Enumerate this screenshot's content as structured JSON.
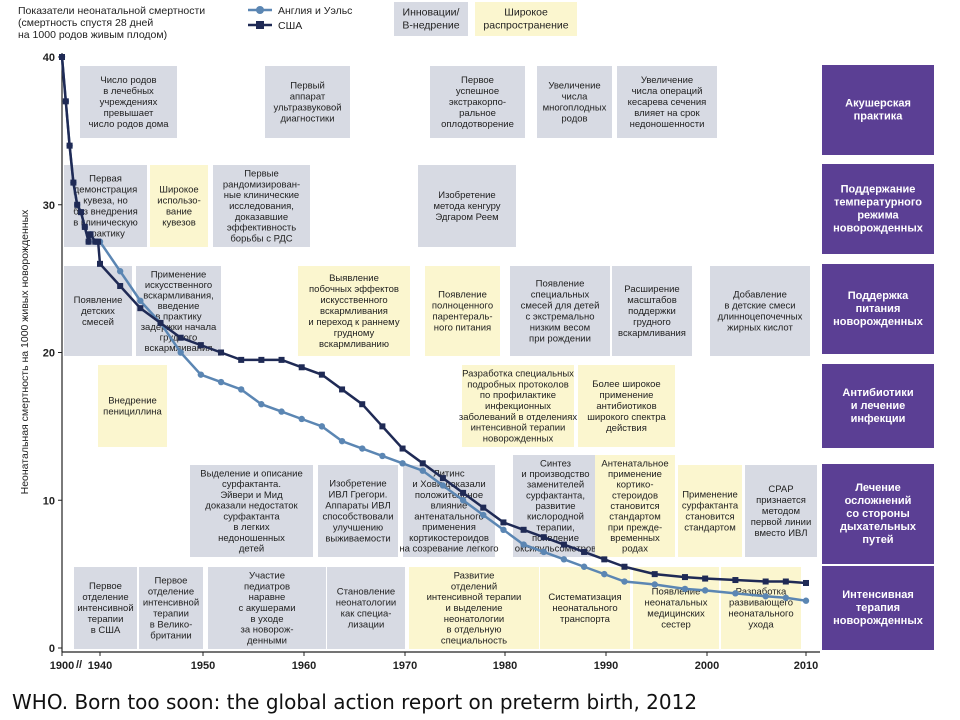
{
  "caption": "WHO. Born too soon: the global action report on preterm birth, 2012",
  "header": {
    "title_lines": [
      "Показатели неонатальной смертности",
      "(смертность спустя 28 дней",
      "на 1000 родов живым плодом)"
    ],
    "key_innov": [
      "Инновации/",
      "В-недрение"
    ],
    "key_wide": [
      "Широкое",
      "распространение"
    ]
  },
  "chart_data": {
    "type": "line",
    "ylabel": "Неонатальная смертность на 1000 живых новорожденных",
    "xlim": [
      1900,
      2010
    ],
    "ylim": [
      0,
      40
    ],
    "xticks": [
      1900,
      1940,
      1950,
      1960,
      1970,
      1980,
      1990,
      2000,
      2010
    ],
    "yticks": [
      0,
      10,
      20,
      30,
      40
    ],
    "series": [
      {
        "name": "Англия и Уэльс",
        "color": "#5b86b3",
        "marker": "circle",
        "x": [
          1900,
          1904,
          1908,
          1912,
          1916,
          1920,
          1924,
          1928,
          1930,
          1935,
          1938,
          1940,
          1942,
          1944,
          1946,
          1948,
          1950,
          1952,
          1954,
          1956,
          1958,
          1960,
          1962,
          1964,
          1966,
          1968,
          1970,
          1972,
          1974,
          1976,
          1978,
          1980,
          1982,
          1984,
          1986,
          1988,
          1990,
          1992,
          1995,
          1998,
          2000,
          2003,
          2006,
          2008,
          2010
        ],
        "y": [
          40,
          37,
          34,
          31.5,
          30,
          29.5,
          28.5,
          27.5,
          28,
          27.5,
          27.5,
          27.5,
          25.5,
          23.5,
          22,
          20,
          18.5,
          18,
          17.5,
          16.5,
          16,
          15.5,
          15,
          14,
          13.5,
          13,
          12.5,
          12,
          11,
          10,
          9,
          8,
          7,
          6.5,
          6,
          5.5,
          5,
          4.5,
          4.3,
          4,
          3.9,
          3.7,
          3.5,
          3.4,
          3.2
        ]
      },
      {
        "name": "США",
        "color": "#1f2a55",
        "marker": "square",
        "x": [
          1900,
          1904,
          1908,
          1912,
          1916,
          1920,
          1924,
          1928,
          1930,
          1935,
          1938,
          1940,
          1942,
          1944,
          1946,
          1948,
          1950,
          1952,
          1954,
          1956,
          1958,
          1960,
          1962,
          1964,
          1966,
          1968,
          1970,
          1972,
          1974,
          1976,
          1978,
          1980,
          1982,
          1984,
          1986,
          1988,
          1990,
          1992,
          1995,
          1998,
          2000,
          2003,
          2006,
          2008,
          2010
        ],
        "y": [
          40,
          37,
          34,
          31.5,
          30,
          29.5,
          28.5,
          27.5,
          28,
          27.5,
          27.5,
          26,
          24.5,
          23,
          22,
          21,
          20.5,
          20,
          19.5,
          19.5,
          19.5,
          19,
          18.5,
          17.5,
          16.5,
          15,
          13.5,
          12.5,
          11.5,
          10.5,
          9.5,
          8.5,
          8,
          7.5,
          7,
          6.5,
          6,
          5.5,
          5,
          4.8,
          4.7,
          4.6,
          4.5,
          4.5,
          4.4
        ]
      }
    ]
  },
  "categories": [
    {
      "name": [
        "Акушерская",
        "практика"
      ],
      "color": "#5b3f94"
    },
    {
      "name": [
        "Поддержание",
        "температурного",
        "режима",
        "новорожденных"
      ],
      "color": "#5b3f94"
    },
    {
      "name": [
        "Поддержка",
        "питания",
        "новорожденных"
      ],
      "color": "#5b3f94"
    },
    {
      "name": [
        "Антибиотики",
        "и лечение",
        "инфекции"
      ],
      "color": "#5b3f94"
    },
    {
      "name": [
        "Лечение",
        "осложнений",
        "со стороны",
        "дыхательных",
        "путей"
      ],
      "color": "#5b3f94"
    },
    {
      "name": [
        "Интенсивная",
        "терапия",
        "новорожденных"
      ],
      "color": "#5b3f94"
    }
  ],
  "events": [
    {
      "kind": "innov",
      "lines": [
        "Число родов",
        "в лечебных",
        "учреждениях",
        "превышает",
        "число родов дома"
      ]
    },
    {
      "kind": "innov",
      "lines": [
        "Первый",
        "аппарат",
        "ультразвуковой",
        "диагностики"
      ]
    },
    {
      "kind": "innov",
      "lines": [
        "Первое",
        "успешное",
        "экстракорпо-",
        "ральное",
        "оплодотворение"
      ]
    },
    {
      "kind": "innov",
      "lines": [
        "Увеличение",
        "числа",
        "многоплодных",
        "родов"
      ]
    },
    {
      "kind": "innov",
      "lines": [
        "Увеличение",
        "числа операций",
        "кесарева сечения",
        "влияет на срок",
        "недоношенности"
      ]
    },
    {
      "kind": "innov",
      "lines": [
        "Первая",
        "демонстрация",
        "кувеза, но",
        "без внедрения",
        "в клиническую",
        "практику"
      ]
    },
    {
      "kind": "wide",
      "lines": [
        "Широкое",
        "использо-",
        "вание",
        "кувезов"
      ]
    },
    {
      "kind": "innov",
      "lines": [
        "Первые",
        "рандомизирован-",
        "ные клинические",
        "исследования,",
        "доказавшие",
        "эффективность",
        "борьбы с РДС"
      ]
    },
    {
      "kind": "innov",
      "lines": [
        "Изобретение",
        "метода кенгуру",
        "Эдгаром Реем"
      ]
    },
    {
      "kind": "innov",
      "lines": [
        "Появление",
        "детских",
        "смесей"
      ]
    },
    {
      "kind": "innov",
      "lines": [
        "Применение",
        "искусственного",
        "вскармливания,",
        "введение",
        "в практику",
        "задержки начала",
        "грудного",
        "вскармливания"
      ]
    },
    {
      "kind": "wide",
      "lines": [
        "Выявление",
        "побочных эффектов",
        "искусственного",
        "вскармливания",
        "и переход к раннему",
        "грудному",
        "вскармливанию"
      ]
    },
    {
      "kind": "wide",
      "lines": [
        "Появление",
        "полноценного",
        "парентераль-",
        "ного питания"
      ]
    },
    {
      "kind": "innov",
      "lines": [
        "Появление",
        "специальных",
        "смесей для детей",
        "с экстремально",
        "низким весом",
        "при рождении"
      ]
    },
    {
      "kind": "innov",
      "lines": [
        "Расширение",
        "масштабов",
        "поддержки",
        "грудного",
        "вскармливания"
      ]
    },
    {
      "kind": "innov",
      "lines": [
        "Добавление",
        "в детские смеси",
        "длинноцепочечных",
        "жирных кислот"
      ]
    },
    {
      "kind": "wide",
      "lines": [
        "Внедрение",
        "пенициллина"
      ]
    },
    {
      "kind": "wide",
      "lines": [
        "Разработка специальных",
        "подробных протоколов",
        "по профилактике",
        "инфекционных",
        "заболеваний в отделениях",
        "интенсивной терапии",
        "новорожденных"
      ]
    },
    {
      "kind": "wide",
      "lines": [
        "Более широкое",
        "применение",
        "антибиотиков",
        "широкого спектра",
        "действия"
      ]
    },
    {
      "kind": "innov",
      "lines": [
        "Выделение и описание",
        "сурфактанта.",
        "Эйвери и Мид",
        "доказали недостаток",
        "сурфактанта",
        "в легких",
        "недоношенных",
        "детей"
      ]
    },
    {
      "kind": "innov",
      "lines": [
        "Изобретение",
        "ИВЛ Грегори.",
        "Аппараты ИВЛ",
        "способствовали",
        "улучшению",
        "выживаемости"
      ]
    },
    {
      "kind": "innov",
      "lines": [
        "Литинс",
        "и Хови доказали",
        "положительное",
        "влияние",
        "антенатального",
        "применения",
        "кортикостероидов",
        "на созревание легкого"
      ]
    },
    {
      "kind": "innov",
      "lines": [
        "Синтез",
        "и производство",
        "заменителей",
        "сурфактанта,",
        "развитие",
        "кислородной",
        "терапии,",
        "появление",
        "оксипульсометров"
      ]
    },
    {
      "kind": "wide",
      "lines": [
        "Антенатальное",
        "применение",
        "кортико-",
        "стероидов",
        "становится",
        "стандартом",
        "при прежде-",
        "временных",
        "родах"
      ]
    },
    {
      "kind": "wide",
      "lines": [
        "Применение",
        "сурфактанта",
        "становится",
        "стандартом"
      ]
    },
    {
      "kind": "innov",
      "lines": [
        "CPAP",
        "признается",
        "методом",
        "первой линии",
        "вместо ИВЛ"
      ]
    },
    {
      "kind": "innov",
      "lines": [
        "Первое",
        "отделение",
        "интенсивной",
        "терапии",
        "в США"
      ]
    },
    {
      "kind": "innov",
      "lines": [
        "Первое",
        "отделение",
        "интенсивной",
        "терапии",
        "в Велико-",
        "британии"
      ]
    },
    {
      "kind": "innov",
      "lines": [
        "Участие",
        "педиатров",
        "наравне",
        "с акушерами",
        "в уходе",
        "за новорож-",
        "денными"
      ]
    },
    {
      "kind": "innov",
      "lines": [
        "Становление",
        "неонатологии",
        "как специа-",
        "лизации"
      ]
    },
    {
      "kind": "wide",
      "lines": [
        "Развитие",
        "отделений",
        "интенсивной терапии",
        "и выделение",
        "неонатологии",
        "в отдельную",
        "специальность"
      ]
    },
    {
      "kind": "wide",
      "lines": [
        "Систематизация",
        "неонатального",
        "транспорта"
      ]
    },
    {
      "kind": "wide",
      "lines": [
        "Появление",
        "неонатальных",
        "медицинских",
        "сестер"
      ]
    },
    {
      "kind": "wide",
      "lines": [
        "Разработка",
        "развивающего",
        "неонатального",
        "ухода"
      ]
    }
  ]
}
